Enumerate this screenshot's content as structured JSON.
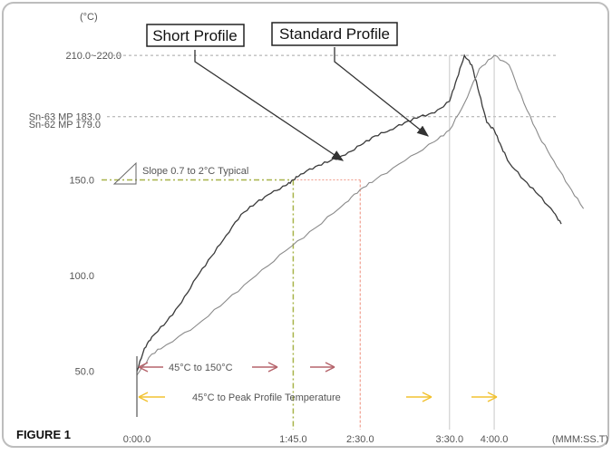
{
  "figure_label": "FIGURE 1",
  "colors": {
    "frame": "#bdbdbd",
    "grid": "#a8a8a8",
    "short_profile": "#3a3a3a",
    "standard_profile": "#8a8a8a",
    "guide_150": "#a8b44a",
    "guide_230": "#f0a090",
    "arrow_150": "#b5636b",
    "arrow_peak": "#f2c230",
    "pointer": "#333333"
  },
  "chart_data": {
    "type": "line",
    "title": "",
    "xlabel": "(MMM:SS.T)",
    "ylabel": "(°C)",
    "xlim": [
      0,
      310
    ],
    "ylim": [
      30,
      225
    ],
    "x_ticks": [
      {
        "value": 0,
        "label": "0:00.0"
      },
      {
        "value": 105,
        "label": "1:45.0"
      },
      {
        "value": 150,
        "label": "2:30.0"
      },
      {
        "value": 210,
        "label": "3:30.0"
      },
      {
        "value": 240,
        "label": "4:00.0"
      }
    ],
    "y_ticks": [
      {
        "value": 215,
        "label": "210.0~220.0"
      },
      {
        "value": 183,
        "label": "Sn-63 MP 183.0"
      },
      {
        "value": 179,
        "label": "Sn-62 MP 179.0"
      },
      {
        "value": 150,
        "label": "150.0"
      },
      {
        "value": 100,
        "label": "100.0"
      },
      {
        "value": 50,
        "label": "50.0"
      }
    ],
    "series": [
      {
        "name": "Short Profile",
        "x": [
          0,
          5,
          10,
          20,
          30,
          40,
          50,
          60,
          70,
          80,
          90,
          100,
          105,
          110,
          120,
          130,
          140,
          150,
          160,
          170,
          180,
          190,
          200,
          210,
          215,
          220,
          225,
          230,
          235,
          240,
          245,
          250,
          260,
          270,
          280,
          285
        ],
        "y": [
          50,
          62,
          68,
          76,
          86,
          99,
          110,
          121,
          132,
          138,
          143,
          147,
          150,
          153,
          157,
          160,
          163,
          168,
          173,
          176,
          180,
          183,
          185,
          191,
          203,
          215,
          210,
          195,
          180,
          176,
          167,
          159,
          150,
          142,
          133,
          127
        ]
      },
      {
        "name": "Standard Profile",
        "x": [
          0,
          10,
          20,
          40,
          60,
          80,
          100,
          120,
          140,
          150,
          160,
          180,
          200,
          210,
          220,
          230,
          240,
          250,
          260,
          270,
          280,
          290,
          300
        ],
        "y": [
          48,
          59,
          64,
          74,
          87,
          100,
          113,
          125,
          138,
          145,
          150,
          160,
          170,
          176,
          190,
          208,
          215,
          210,
          190,
          173,
          160,
          147,
          135
        ]
      }
    ],
    "reference_lines": [
      {
        "axis": "y",
        "value": 215
      },
      {
        "axis": "y",
        "value": 183
      },
      {
        "axis": "y",
        "value": 150,
        "to_x": 150
      },
      {
        "axis": "x",
        "value": 105
      },
      {
        "axis": "x",
        "value": 150
      },
      {
        "axis": "x",
        "value": 210
      },
      {
        "axis": "x",
        "value": 240
      }
    ],
    "annotations": {
      "short_profile_label": "Short Profile",
      "standard_profile_label": "Standard Profile",
      "slope_note": "Slope 0.7 to 2°C Typical",
      "preheat_span": "45°C to 150°C",
      "peak_span": "45°C to Peak Profile Temperature"
    }
  }
}
